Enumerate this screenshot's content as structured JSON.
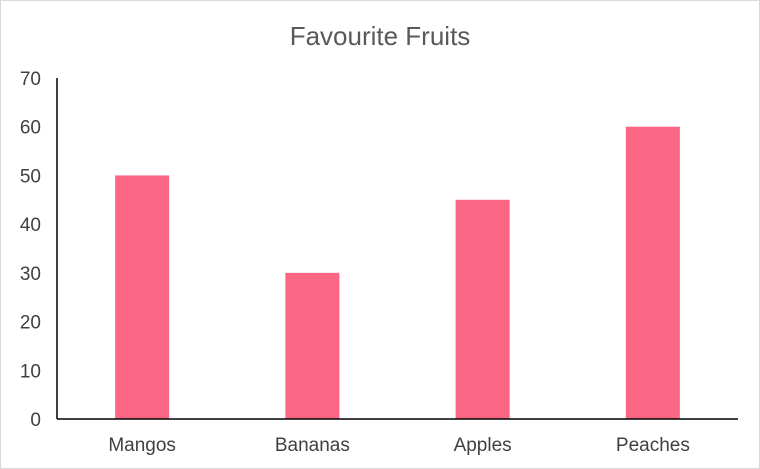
{
  "chart_data": {
    "type": "bar",
    "title": "Favourite Fruits",
    "categories": [
      "Mangos",
      "Bananas",
      "Apples",
      "Peaches"
    ],
    "values": [
      50,
      30,
      45,
      60
    ],
    "ylim": [
      0,
      70
    ],
    "yticks": [
      0,
      10,
      20,
      30,
      40,
      50,
      60,
      70
    ],
    "grid": false,
    "legend": "none",
    "bar_color": "#fc6685"
  }
}
